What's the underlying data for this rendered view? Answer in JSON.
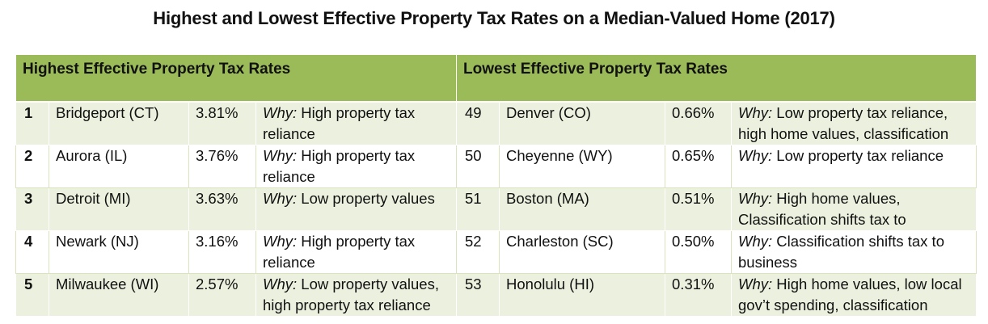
{
  "title": "Highest and Lowest Effective Property Tax Rates on a Median-Valued Home (2017)",
  "headers": {
    "highest": "Highest Effective Property Tax Rates",
    "lowest": "Lowest Effective Property Tax Rates"
  },
  "why_label": "Why:",
  "rows": [
    {
      "high": {
        "rank": "1",
        "city": "Bridgeport (CT)",
        "rate": "3.81%",
        "why": " High property tax reliance"
      },
      "low": {
        "rank": "49",
        "city": "Denver (CO)",
        "rate": "0.66%",
        "why": " Low property tax reliance, high home values, classification"
      }
    },
    {
      "high": {
        "rank": "2",
        "city": "Aurora (IL)",
        "rate": "3.76%",
        "why": " High property tax reliance"
      },
      "low": {
        "rank": "50",
        "city": "Cheyenne (WY)",
        "rate": "0.65%",
        "why": " Low property tax reliance"
      }
    },
    {
      "high": {
        "rank": "3",
        "city": "Detroit (MI)",
        "rate": "3.63%",
        "why": " Low property values"
      },
      "low": {
        "rank": "51",
        "city": "Boston (MA)",
        "rate": "0.51%",
        "why": " High home values, Classification shifts tax to"
      }
    },
    {
      "high": {
        "rank": "4",
        "city": "Newark (NJ)",
        "rate": "3.16%",
        "why": " High property tax reliance"
      },
      "low": {
        "rank": "52",
        "city": "Charleston (SC)",
        "rate": "0.50%",
        "why": " Classification shifts tax to business"
      }
    },
    {
      "high": {
        "rank": "5",
        "city": "Milwaukee (WI)",
        "rate": "2.57%",
        "why": " Low property values, high property tax reliance"
      },
      "low": {
        "rank": "53",
        "city": "Honolulu (HI)",
        "rate": "0.31%",
        "why": " High home values, low local gov’t spending, classification"
      }
    }
  ],
  "colors": {
    "header_bg": "#9bbb59",
    "alt_row_bg": "#ebf1de"
  }
}
